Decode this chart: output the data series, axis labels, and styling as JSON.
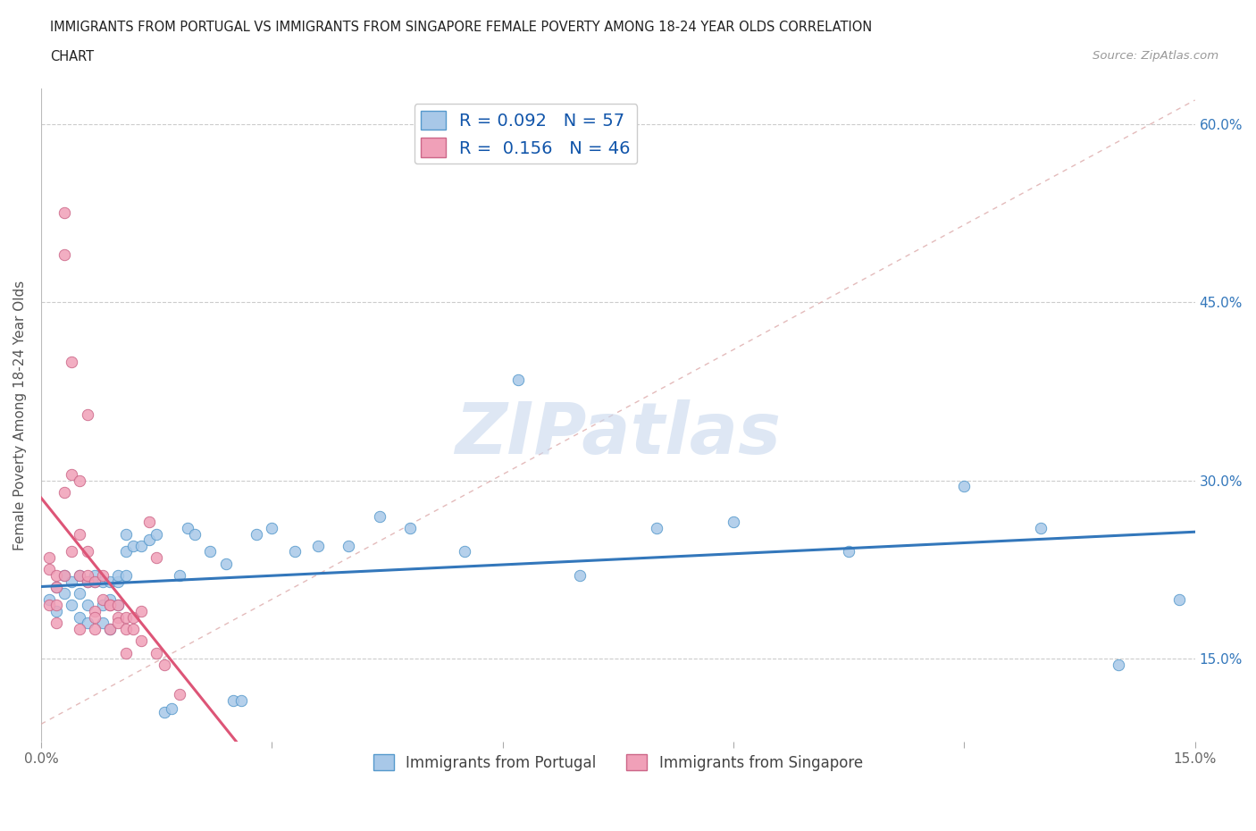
{
  "title_line1": "IMMIGRANTS FROM PORTUGAL VS IMMIGRANTS FROM SINGAPORE FEMALE POVERTY AMONG 18-24 YEAR OLDS CORRELATION",
  "title_line2": "CHART",
  "source": "Source: ZipAtlas.com",
  "ylabel": "Female Poverty Among 18-24 Year Olds",
  "xlim": [
    0.0,
    0.15
  ],
  "ylim": [
    0.08,
    0.63
  ],
  "yticks": [
    0.15,
    0.3,
    0.45,
    0.6
  ],
  "yticklabels": [
    "15.0%",
    "30.0%",
    "45.0%",
    "60.0%"
  ],
  "r_portugal": 0.092,
  "n_portugal": 57,
  "r_singapore": 0.156,
  "n_singapore": 46,
  "color_portugal": "#a8c8e8",
  "color_singapore": "#f0a0b8",
  "edge_portugal": "#5599cc",
  "edge_singapore": "#cc6688",
  "trend_color_portugal": "#3377bb",
  "trend_color_singapore": "#dd5577",
  "diagonal_color": "#ddaaaa",
  "watermark_color": "#c8d8ee",
  "legend_labels": [
    "Immigrants from Portugal",
    "Immigrants from Singapore"
  ],
  "portugal_x": [
    0.001,
    0.002,
    0.002,
    0.003,
    0.003,
    0.004,
    0.004,
    0.005,
    0.005,
    0.005,
    0.006,
    0.006,
    0.006,
    0.007,
    0.007,
    0.008,
    0.008,
    0.008,
    0.009,
    0.009,
    0.009,
    0.01,
    0.01,
    0.01,
    0.011,
    0.011,
    0.011,
    0.012,
    0.013,
    0.014,
    0.015,
    0.016,
    0.017,
    0.018,
    0.019,
    0.02,
    0.022,
    0.024,
    0.025,
    0.026,
    0.028,
    0.03,
    0.033,
    0.036,
    0.04,
    0.044,
    0.048,
    0.055,
    0.062,
    0.07,
    0.08,
    0.09,
    0.105,
    0.12,
    0.13,
    0.14,
    0.148
  ],
  "portugal_y": [
    0.2,
    0.21,
    0.19,
    0.22,
    0.205,
    0.195,
    0.215,
    0.185,
    0.22,
    0.205,
    0.215,
    0.195,
    0.18,
    0.215,
    0.22,
    0.195,
    0.215,
    0.18,
    0.215,
    0.2,
    0.175,
    0.215,
    0.22,
    0.195,
    0.255,
    0.24,
    0.22,
    0.245,
    0.245,
    0.25,
    0.255,
    0.105,
    0.108,
    0.22,
    0.26,
    0.255,
    0.24,
    0.23,
    0.115,
    0.115,
    0.255,
    0.26,
    0.24,
    0.245,
    0.245,
    0.27,
    0.26,
    0.24,
    0.385,
    0.22,
    0.26,
    0.265,
    0.24,
    0.295,
    0.26,
    0.145,
    0.2
  ],
  "singapore_x": [
    0.001,
    0.001,
    0.001,
    0.002,
    0.002,
    0.002,
    0.002,
    0.003,
    0.003,
    0.003,
    0.003,
    0.004,
    0.004,
    0.004,
    0.005,
    0.005,
    0.005,
    0.005,
    0.006,
    0.006,
    0.006,
    0.006,
    0.007,
    0.007,
    0.007,
    0.007,
    0.008,
    0.008,
    0.009,
    0.009,
    0.009,
    0.01,
    0.01,
    0.01,
    0.011,
    0.011,
    0.011,
    0.012,
    0.012,
    0.013,
    0.013,
    0.014,
    0.015,
    0.015,
    0.016,
    0.018
  ],
  "singapore_y": [
    0.225,
    0.235,
    0.195,
    0.21,
    0.22,
    0.195,
    0.18,
    0.525,
    0.49,
    0.29,
    0.22,
    0.4,
    0.305,
    0.24,
    0.3,
    0.255,
    0.175,
    0.22,
    0.215,
    0.24,
    0.22,
    0.355,
    0.19,
    0.215,
    0.175,
    0.185,
    0.22,
    0.2,
    0.195,
    0.195,
    0.175,
    0.185,
    0.195,
    0.18,
    0.185,
    0.175,
    0.155,
    0.175,
    0.185,
    0.19,
    0.165,
    0.265,
    0.235,
    0.155,
    0.145,
    0.12
  ]
}
